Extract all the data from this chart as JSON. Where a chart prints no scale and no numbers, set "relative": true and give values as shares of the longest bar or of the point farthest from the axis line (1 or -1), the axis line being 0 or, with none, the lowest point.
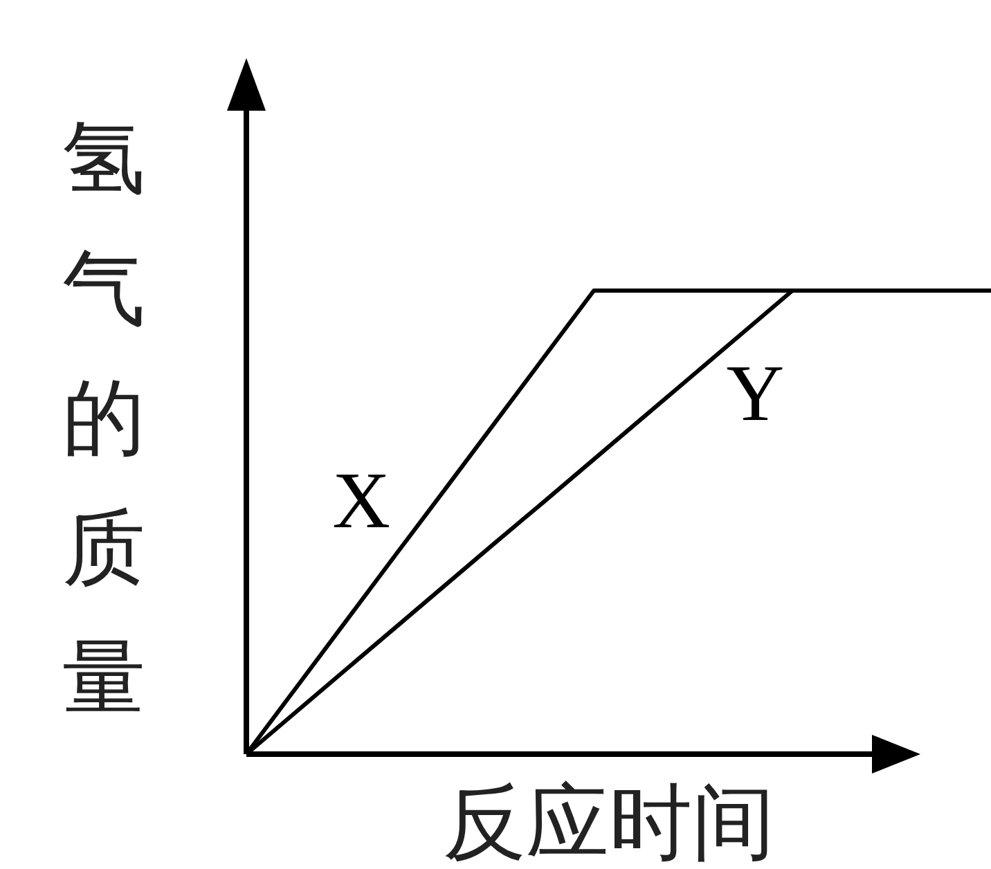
{
  "chart_data": {
    "type": "line",
    "relative": true,
    "xlabel": "反应时间",
    "ylabel": "氢气的质量",
    "categories": [
      null,
      null,
      null,
      null,
      null,
      null,
      null,
      null,
      null,
      null,
      null,
      null,
      null,
      null,
      null,
      null
    ],
    "series": [
      {
        "name": "X",
        "color": "#000000",
        "values": [
          0,
          0.143,
          0.286,
          0.429,
          0.571,
          0.714,
          0.857,
          1,
          1,
          1,
          1,
          1,
          1,
          1,
          1,
          1
        ]
      },
      {
        "name": "Y",
        "color": "#000000",
        "values": [
          0,
          0.091,
          0.182,
          0.273,
          0.364,
          0.455,
          0.545,
          0.636,
          0.727,
          0.818,
          0.909,
          1,
          1,
          1,
          1,
          1
        ]
      }
    ]
  }
}
